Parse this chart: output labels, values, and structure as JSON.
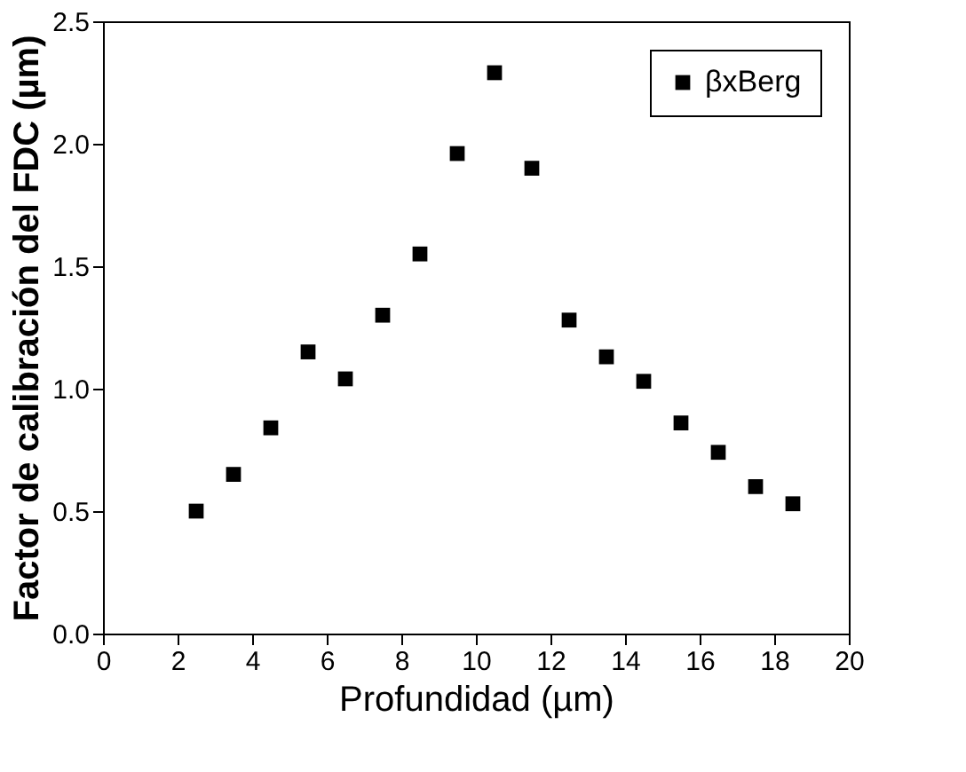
{
  "chart_data": {
    "type": "scatter",
    "xlabel": "Profundidad (µm)",
    "ylabel": "Factor de calibración del FDC (µm)",
    "x": [
      2.5,
      3.5,
      4.5,
      5.5,
      6.5,
      7.5,
      8.5,
      9.5,
      10.5,
      11.5,
      12.5,
      13.5,
      14.5,
      15.5,
      16.5,
      17.5,
      18.5
    ],
    "series": [
      {
        "name": "βxBerg",
        "color": "#000000",
        "values": [
          0.5,
          0.65,
          0.84,
          1.15,
          1.04,
          1.3,
          1.55,
          1.96,
          2.29,
          1.9,
          1.28,
          1.13,
          1.03,
          0.86,
          0.74,
          0.6,
          0.53
        ]
      }
    ],
    "xlim": [
      0,
      20
    ],
    "xticks": [
      0,
      2,
      4,
      6,
      8,
      10,
      12,
      14,
      16,
      18,
      20
    ],
    "ylim": [
      0,
      2.5
    ],
    "yticks": [
      {
        "value": 0,
        "label": "0.0"
      },
      {
        "value": 0.5,
        "label": "0.5"
      },
      {
        "value": 1,
        "label": "1.0"
      },
      {
        "value": 1.5,
        "label": "1.5"
      },
      {
        "value": 2,
        "label": "2.0"
      },
      2.5
    ],
    "marker": "square",
    "grid": false,
    "legend": "top right"
  }
}
